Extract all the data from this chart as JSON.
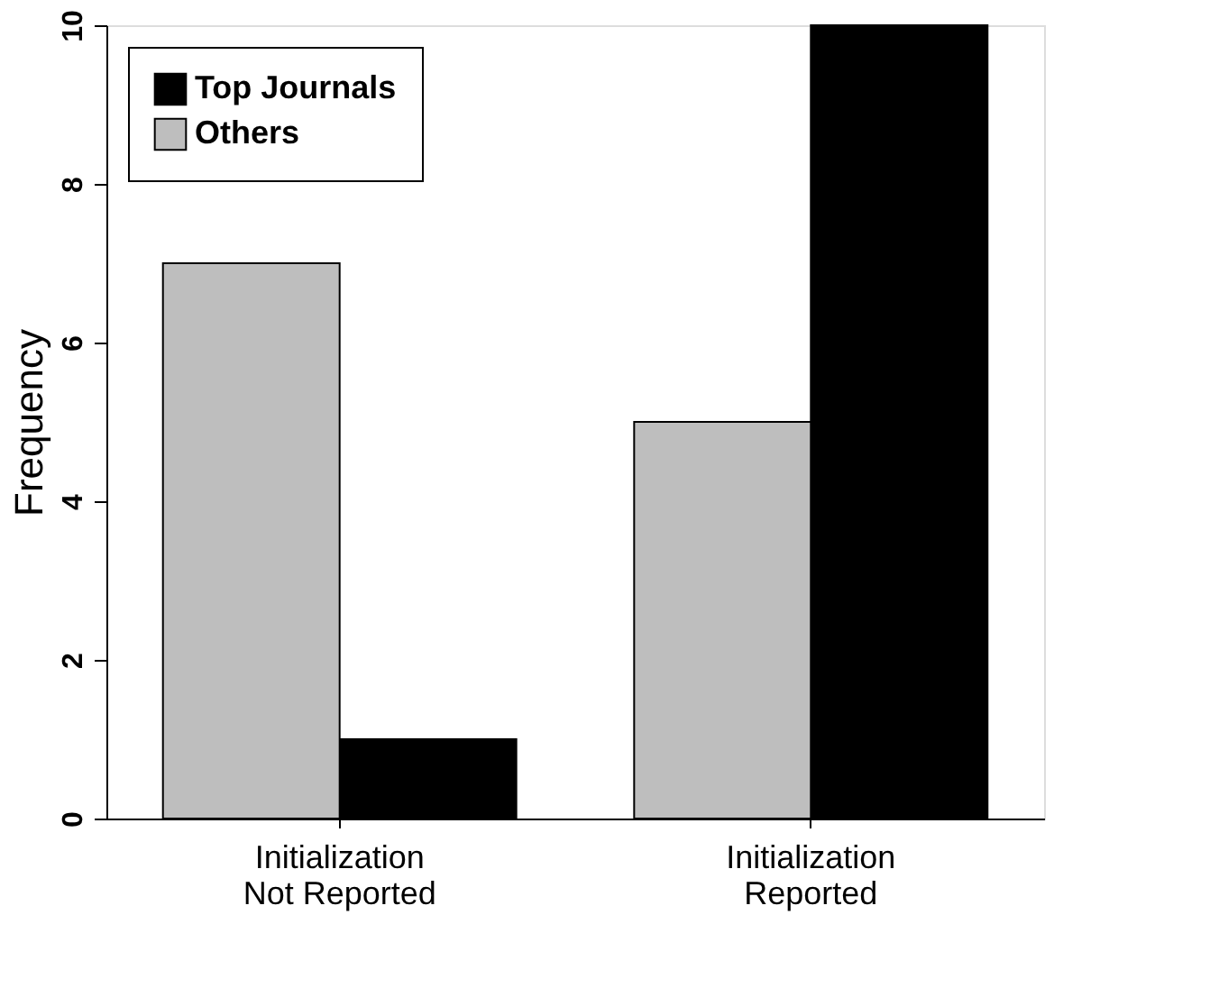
{
  "chart_data": {
    "type": "bar",
    "ylabel": "Frequency",
    "categories": [
      "Initialization\nNot Reported",
      "Initialization\nReported"
    ],
    "series": [
      {
        "name": "Top Journals",
        "color": "#000000",
        "values": [
          1,
          10
        ]
      },
      {
        "name": "Others",
        "color": "#bebebe",
        "values": [
          7,
          5
        ]
      }
    ],
    "ylim": [
      0,
      10
    ],
    "yticks": [
      0,
      2,
      4,
      6,
      8,
      10
    ],
    "grid": false,
    "legend": "top left"
  }
}
